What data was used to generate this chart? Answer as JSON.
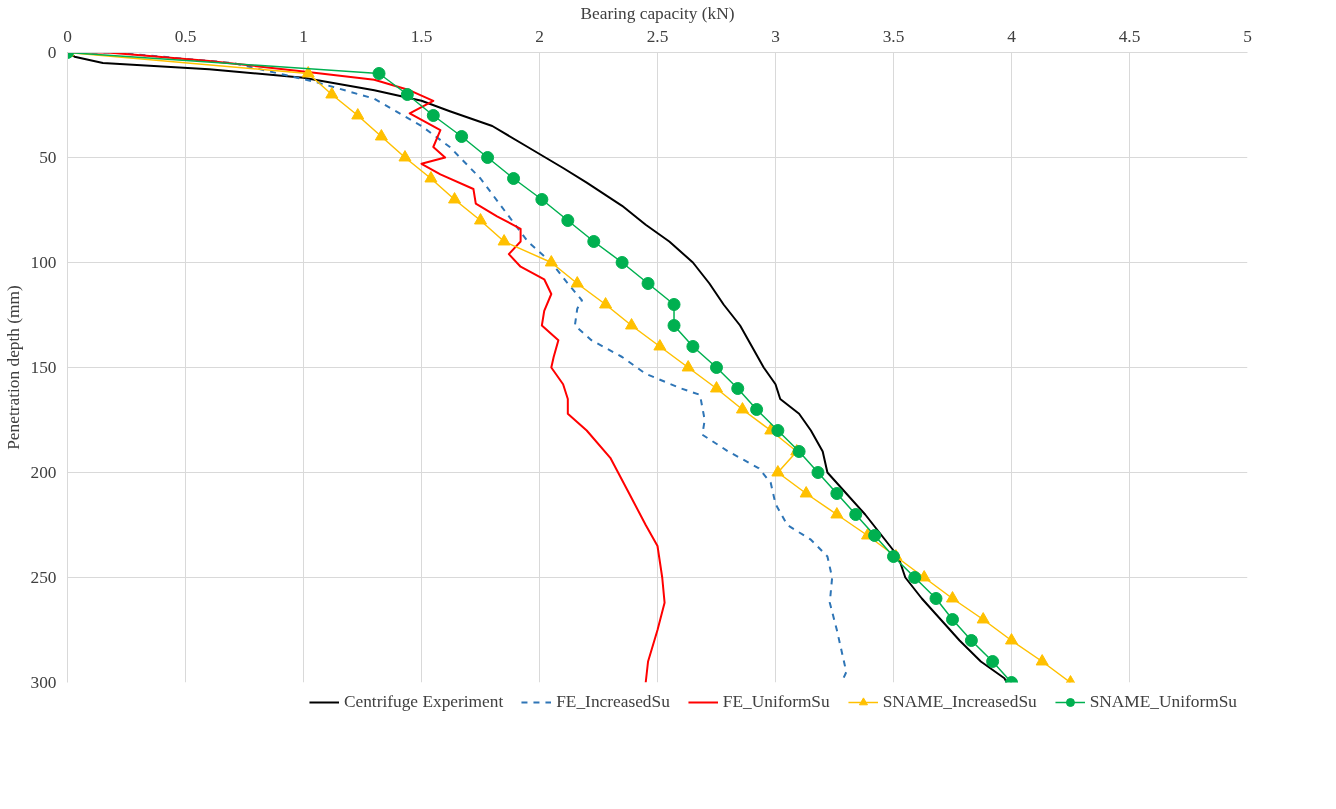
{
  "chart_data": {
    "type": "line",
    "xlabel": "Bearing capacity (kN)",
    "ylabel": "Penetration depth (mm)",
    "xlim": [
      0,
      5
    ],
    "xticks": [
      0,
      0.5,
      1,
      1.5,
      2,
      2.5,
      3,
      3.5,
      4,
      4.5,
      5
    ],
    "ylim": [
      300,
      0
    ],
    "yticks": [
      0,
      50,
      100,
      150,
      200,
      250,
      300
    ],
    "grid": true,
    "legend": "bottom",
    "series": [
      {
        "name": "Centrifuge Experiment",
        "color": "#000000",
        "marker": "none",
        "line_style": "solid",
        "x": [
          0,
          0.03,
          0.15,
          0.6,
          1.0,
          1.3,
          1.5,
          1.62,
          1.8,
          1.95,
          2.1,
          2.2,
          2.35,
          2.45,
          2.55,
          2.65,
          2.72,
          2.78,
          2.85,
          2.9,
          2.95,
          3.0,
          3.02,
          3.1,
          3.15,
          3.2,
          3.22,
          3.3,
          3.38,
          3.45,
          3.52,
          3.55,
          3.62,
          3.7,
          3.78,
          3.87,
          3.97,
          3.98
        ],
        "values": [
          0,
          2,
          5,
          8,
          12,
          18,
          23,
          28,
          35,
          45,
          55,
          62,
          73,
          82,
          90,
          100,
          110,
          120,
          130,
          140,
          150,
          158,
          165,
          172,
          180,
          190,
          200,
          210,
          220,
          230,
          240,
          250,
          260,
          270,
          280,
          290,
          298,
          300
        ]
      },
      {
        "name": "FE_IncreasedSu",
        "color": "#2e75b6",
        "marker": "none",
        "line_style": "dashed",
        "x": [
          0,
          0.2,
          0.7,
          1.05,
          1.3,
          1.5,
          1.62,
          1.75,
          1.85,
          1.95,
          2.05,
          2.12,
          2.18,
          2.16,
          2.15,
          2.22,
          2.35,
          2.45,
          2.6,
          2.68,
          2.7,
          2.69,
          2.8,
          2.93,
          2.98,
          3.0,
          3.05,
          3.15,
          3.22,
          3.24,
          3.23,
          3.26,
          3.28,
          3.3,
          3.28
        ],
        "values": [
          0,
          0,
          5,
          14,
          22,
          35,
          45,
          60,
          75,
          90,
          100,
          110,
          118,
          122,
          130,
          137,
          145,
          153,
          160,
          163,
          175,
          182,
          190,
          198,
          205,
          215,
          225,
          232,
          240,
          250,
          262,
          275,
          285,
          295,
          300
        ]
      },
      {
        "name": "FE_UniformSu",
        "color": "#ff0000",
        "marker": "none",
        "line_style": "solid",
        "x": [
          0,
          0.17,
          0.6,
          1.0,
          1.3,
          1.45,
          1.55,
          1.45,
          1.58,
          1.55,
          1.6,
          1.5,
          1.58,
          1.72,
          1.73,
          1.82,
          1.92,
          1.92,
          1.87,
          1.92,
          2.02,
          2.05,
          2.02,
          2.01,
          2.08,
          2.06,
          2.05,
          2.1,
          2.12,
          2.12,
          2.2,
          2.3,
          2.38,
          2.45,
          2.5,
          2.52,
          2.53,
          2.5,
          2.46,
          2.45
        ],
        "values": [
          0,
          0,
          4,
          9,
          13,
          18,
          23,
          29,
          37,
          45,
          50,
          53,
          58,
          65,
          72,
          78,
          84,
          90,
          96,
          102,
          108,
          115,
          123,
          130,
          137,
          145,
          150,
          158,
          165,
          172,
          180,
          193,
          210,
          225,
          235,
          250,
          262,
          275,
          290,
          300
        ]
      },
      {
        "name": "SNAME_IncreasedSu",
        "color": "#ffc000",
        "marker": "triangle",
        "line_style": "solid",
        "x": [
          0,
          1.02,
          1.12,
          1.23,
          1.33,
          1.43,
          1.54,
          1.64,
          1.75,
          1.85,
          2.05,
          2.16,
          2.28,
          2.39,
          2.51,
          2.63,
          2.75,
          2.86,
          2.98,
          3.09,
          3.01,
          3.13,
          3.26,
          3.39,
          3.51,
          3.63,
          3.75,
          3.88,
          4.0,
          4.13,
          4.25
        ],
        "values": [
          0,
          10,
          20,
          30,
          40,
          50,
          60,
          70,
          80,
          90,
          100,
          110,
          120,
          130,
          140,
          150,
          160,
          170,
          180,
          190,
          200,
          210,
          220,
          230,
          240,
          250,
          260,
          270,
          280,
          290,
          300
        ]
      },
      {
        "name": "SNAME_UniformSu",
        "color": "#00b050",
        "marker": "circle",
        "line_style": "solid",
        "x": [
          0,
          1.32,
          1.44,
          1.55,
          1.67,
          1.78,
          1.89,
          2.01,
          2.12,
          2.23,
          2.35,
          2.46,
          2.57,
          2.57,
          2.65,
          2.75,
          2.84,
          2.92,
          3.01,
          3.1,
          3.18,
          3.26,
          3.34,
          3.42,
          3.5,
          3.59,
          3.68,
          3.75,
          3.83,
          3.92,
          4.0
        ],
        "values": [
          0,
          10,
          20,
          30,
          40,
          50,
          60,
          70,
          80,
          90,
          100,
          110,
          120,
          130,
          140,
          150,
          160,
          170,
          180,
          190,
          200,
          210,
          220,
          230,
          240,
          250,
          260,
          270,
          280,
          290,
          300
        ]
      }
    ]
  }
}
